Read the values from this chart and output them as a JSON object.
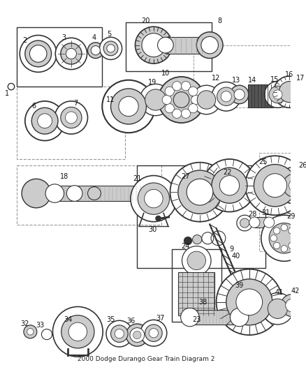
{
  "title": "2000 Dodge Durango Gear Train Diagram 2",
  "bg_color": "#ffffff",
  "fig_width": 4.38,
  "fig_height": 5.33,
  "dpi": 100
}
